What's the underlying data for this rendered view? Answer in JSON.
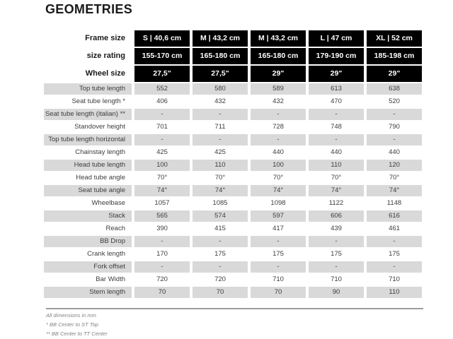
{
  "title": "GEOMETRIES",
  "colors": {
    "header_bg": "#000000",
    "header_text": "#ffffff",
    "row_alt_bg": "#d9d9d9",
    "body_text": "#3d3d3d"
  },
  "table": {
    "header_rows": [
      {
        "label": "Frame size",
        "values": [
          "S | 40,6 cm",
          "M | 43,2 cm",
          "M | 43,2 cm",
          "L | 47 cm",
          "XL | 52 cm"
        ]
      },
      {
        "label": "size rating",
        "values": [
          "155-170 cm",
          "165-180 cm",
          "165-180 cm",
          "179-190 cm",
          "185-198 cm"
        ]
      },
      {
        "label": "Wheel size",
        "values": [
          "27,5\"",
          "27,5\"",
          "29\"",
          "29\"",
          "29\""
        ]
      }
    ],
    "body_rows": [
      {
        "label": "Top tube length",
        "values": [
          "552",
          "580",
          "589",
          "613",
          "638"
        ]
      },
      {
        "label": "Seat tube length *",
        "values": [
          "406",
          "432",
          "432",
          "470",
          "520"
        ]
      },
      {
        "label": "Seat tube length (italian) **",
        "values": [
          "-",
          "-",
          "-",
          "-",
          "-"
        ]
      },
      {
        "label": "Standover height",
        "values": [
          "701",
          "711",
          "728",
          "748",
          "790"
        ]
      },
      {
        "label": "Top tube length horizontal",
        "values": [
          "-",
          "-",
          "-",
          "-",
          "-"
        ]
      },
      {
        "label": "Chainstay length",
        "values": [
          "425",
          "425",
          "440",
          "440",
          "440"
        ]
      },
      {
        "label": "Head tube length",
        "values": [
          "100",
          "110",
          "100",
          "110",
          "120"
        ]
      },
      {
        "label": "Head tube angle",
        "values": [
          "70°",
          "70°",
          "70°",
          "70°",
          "70°"
        ]
      },
      {
        "label": "Seat tube angle",
        "values": [
          "74°",
          "74°",
          "74°",
          "74°",
          "74°"
        ]
      },
      {
        "label": "Wheelbase",
        "values": [
          "1057",
          "1085",
          "1098",
          "1122",
          "1148"
        ]
      },
      {
        "label": "Stack",
        "values": [
          "565",
          "574",
          "597",
          "606",
          "616"
        ]
      },
      {
        "label": "Reach",
        "values": [
          "390",
          "415",
          "417",
          "439",
          "461"
        ]
      },
      {
        "label": "BB Drop",
        "values": [
          "-",
          "-",
          "-",
          "-",
          "-"
        ]
      },
      {
        "label": "Crank length",
        "values": [
          "170",
          "175",
          "175",
          "175",
          "175"
        ]
      },
      {
        "label": "Fork offset",
        "values": [
          "-",
          "-",
          "-",
          "-",
          "-"
        ]
      },
      {
        "label": "Bar Width",
        "values": [
          "720",
          "720",
          "710",
          "710",
          "710"
        ]
      },
      {
        "label": "Stem length",
        "values": [
          "70",
          "70",
          "70",
          "90",
          "110"
        ]
      }
    ]
  },
  "footnotes": [
    "All dimensions in mm",
    "* BB Center to ST Top",
    "** BB Center to TT Center"
  ]
}
